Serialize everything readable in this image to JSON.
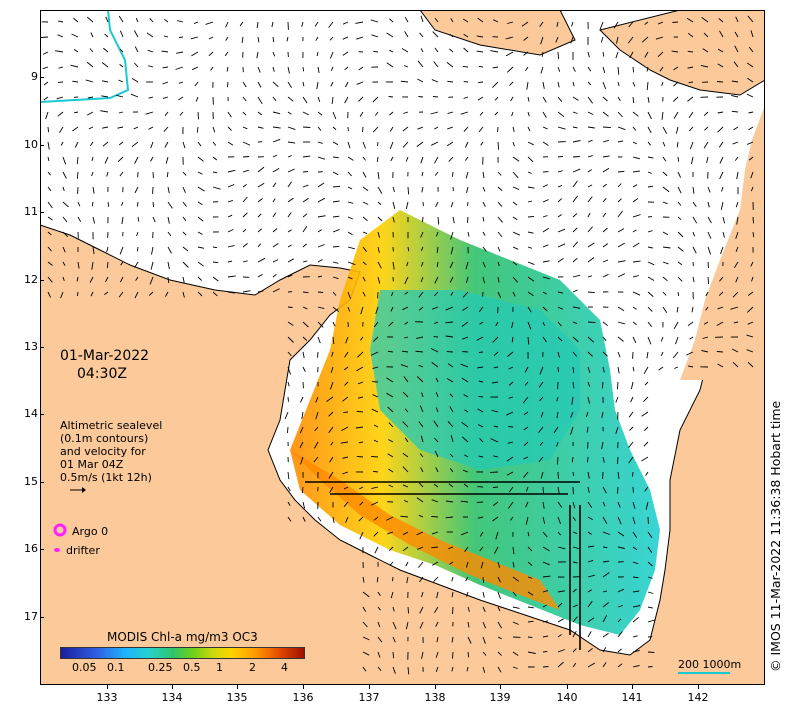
{
  "map": {
    "date": "01-Mar-2022",
    "time": "04:30Z",
    "credit": "© IMOS 11-Mar-2022 11:36:38 Hobart time",
    "legend_text": [
      "Altimetric sealevel",
      "(0.1m contours)",
      "and velocity for",
      "01 Mar 04Z",
      "0.5m/s (1kt 12h)"
    ],
    "argo_label": "Argo 0",
    "drifter_label": "drifter",
    "colorbar_title": "MODIS Chl-a mg/m3 OC3",
    "colorbar_ticks": [
      "0.05",
      "0.1",
      "0.25",
      "0.5",
      "1",
      "2",
      "4"
    ],
    "scale_label": "200  1000m",
    "lat_ticks": [
      "9",
      "10",
      "11",
      "12",
      "13",
      "14",
      "15",
      "16",
      "17"
    ],
    "lon_ticks": [
      "133",
      "134",
      "135",
      "136",
      "137",
      "138",
      "139",
      "140",
      "141",
      "142"
    ],
    "colors": {
      "land": "#fbc99a",
      "coast": "#000000",
      "argo": "#ff22ff",
      "isobath": "#19c9d0"
    }
  }
}
